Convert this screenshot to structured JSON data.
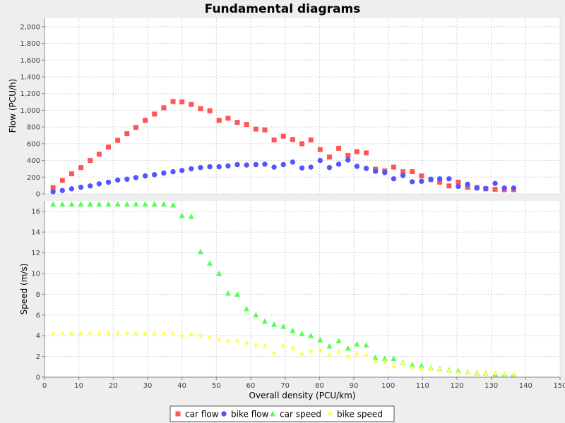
{
  "chart_data": {
    "type": "scatter",
    "title": "Fundamental diagrams",
    "xlabel": "Overall density (PCU/km)",
    "xlim": [
      0,
      150
    ],
    "xticks": [
      "0",
      "10",
      "20",
      "30",
      "40",
      "50",
      "60",
      "70",
      "80",
      "90",
      "100",
      "110",
      "120",
      "130",
      "140",
      "150"
    ],
    "grid": true,
    "legend_position": "bottom",
    "subplots": [
      {
        "name": "flow",
        "ylabel": "Flow (PCU/h)",
        "ylim": [
          0,
          2100
        ],
        "yticks": [
          "0",
          "200",
          "400",
          "600",
          "800",
          "1,000",
          "1,200",
          "1,400",
          "1,600",
          "1,800",
          "2,000"
        ],
        "series": [
          {
            "name": "car flow",
            "color": "#ff5555",
            "marker": "square",
            "x": [
              2.5,
              5.2,
              7.9,
              10.6,
              13.3,
              15.9,
              18.6,
              21.3,
              24.0,
              26.6,
              29.3,
              32.0,
              34.7,
              37.4,
              40.0,
              42.7,
              45.4,
              48.1,
              50.8,
              53.4,
              56.1,
              58.8,
              61.5,
              64.1,
              66.8,
              69.5,
              72.2,
              74.9,
              77.5,
              80.2,
              82.9,
              85.6,
              88.3,
              90.9,
              93.6,
              96.3,
              99.0,
              101.6,
              104.3,
              107.0,
              109.7,
              112.4,
              115.0,
              117.7,
              120.4,
              123.1,
              125.8,
              128.4,
              131.1,
              133.8,
              136.5
            ],
            "y": [
              75,
              160,
              240,
              315,
              400,
              475,
              560,
              640,
              720,
              795,
              880,
              955,
              1030,
              1105,
              1100,
              1070,
              1020,
              995,
              880,
              905,
              855,
              830,
              775,
              765,
              645,
              690,
              650,
              600,
              645,
              530,
              440,
              545,
              460,
              505,
              490,
              295,
              275,
              320,
              265,
              265,
              215,
              170,
              140,
              95,
              140,
              80,
              75,
              60,
              55,
              50,
              50
            ]
          },
          {
            "name": "bike flow",
            "color": "#5555ff",
            "marker": "circle",
            "x": [
              2.5,
              5.2,
              7.9,
              10.6,
              13.3,
              15.9,
              18.6,
              21.3,
              24.0,
              26.6,
              29.3,
              32.0,
              34.7,
              37.4,
              40.0,
              42.7,
              45.4,
              48.1,
              50.8,
              53.4,
              56.1,
              58.8,
              61.5,
              64.1,
              66.8,
              69.5,
              72.2,
              74.9,
              77.5,
              80.2,
              82.9,
              85.6,
              88.3,
              90.9,
              93.6,
              96.3,
              99.0,
              101.6,
              104.3,
              107.0,
              109.7,
              112.4,
              115.0,
              117.7,
              120.4,
              123.1,
              125.8,
              128.4,
              131.1,
              133.8,
              136.5
            ],
            "y": [
              25,
              40,
              60,
              80,
              95,
              120,
              140,
              165,
              175,
              195,
              215,
              230,
              250,
              265,
              280,
              300,
              315,
              325,
              325,
              335,
              350,
              345,
              350,
              355,
              320,
              350,
              380,
              310,
              320,
              400,
              315,
              355,
              405,
              330,
              305,
              270,
              255,
              180,
              220,
              145,
              150,
              175,
              180,
              180,
              90,
              115,
              70,
              65,
              125,
              70,
              70
            ]
          }
        ]
      },
      {
        "name": "speed",
        "ylabel": "Speed (m/s)",
        "ylim": [
          0,
          17
        ],
        "yticks": [
          "0",
          "2",
          "4",
          "6",
          "8",
          "10",
          "12",
          "14",
          "16"
        ],
        "series": [
          {
            "name": "car speed",
            "color": "#55ff55",
            "marker": "triangle",
            "x": [
              2.5,
              5.2,
              7.9,
              10.6,
              13.3,
              15.9,
              18.6,
              21.3,
              24.0,
              26.6,
              29.3,
              32.0,
              34.7,
              37.4,
              40.0,
              42.7,
              45.4,
              48.1,
              50.8,
              53.4,
              56.1,
              58.8,
              61.5,
              64.1,
              66.8,
              69.5,
              72.2,
              74.9,
              77.5,
              80.2,
              82.9,
              85.6,
              88.3,
              90.9,
              93.6,
              96.3,
              99.0,
              101.6,
              104.3,
              107.0,
              109.7,
              112.4,
              115.0,
              117.7,
              120.4,
              123.1,
              125.8,
              128.4,
              131.1,
              133.8,
              136.5
            ],
            "y": [
              16.7,
              16.7,
              16.7,
              16.7,
              16.7,
              16.7,
              16.7,
              16.7,
              16.7,
              16.7,
              16.7,
              16.7,
              16.7,
              16.6,
              15.6,
              15.5,
              12.1,
              11.0,
              10.0,
              8.1,
              8.0,
              6.6,
              6.0,
              5.4,
              5.1,
              4.9,
              4.5,
              4.2,
              4.0,
              3.6,
              3.0,
              3.5,
              2.8,
              3.2,
              3.1,
              1.9,
              1.8,
              1.8,
              1.4,
              1.2,
              1.1,
              0.9,
              0.8,
              0.7,
              0.6,
              0.5,
              0.4,
              0.4,
              0.3,
              0.3,
              0.3
            ]
          },
          {
            "name": "bike speed",
            "color": "#ffff55",
            "marker": "diamond",
            "x": [
              2.5,
              5.2,
              7.9,
              10.6,
              13.3,
              15.9,
              18.6,
              21.3,
              24.0,
              26.6,
              29.3,
              32.0,
              34.7,
              37.4,
              40.0,
              42.7,
              45.4,
              48.1,
              50.8,
              53.4,
              56.1,
              58.8,
              61.5,
              64.1,
              66.8,
              69.5,
              72.2,
              74.9,
              77.5,
              80.2,
              82.9,
              85.6,
              88.3,
              90.9,
              93.6,
              96.3,
              99.0,
              101.6,
              104.3,
              107.0,
              109.7,
              112.4,
              115.0,
              117.7,
              120.4,
              123.1,
              125.8,
              128.4,
              131.1,
              133.8,
              136.5
            ],
            "y": [
              4.2,
              4.2,
              4.2,
              4.2,
              4.2,
              4.2,
              4.2,
              4.2,
              4.2,
              4.2,
              4.2,
              4.2,
              4.2,
              4.2,
              4.0,
              4.1,
              4.0,
              3.8,
              3.6,
              3.5,
              3.5,
              3.3,
              3.1,
              3.0,
              2.3,
              3.0,
              2.8,
              2.2,
              2.5,
              2.6,
              2.1,
              2.4,
              2.0,
              2.2,
              2.1,
              1.5,
              1.5,
              1.0,
              1.3,
              0.9,
              0.8,
              0.8,
              0.7,
              0.6,
              0.4,
              0.4,
              0.3,
              0.3,
              0.4,
              0.3,
              0.3
            ]
          }
        ]
      }
    ]
  }
}
